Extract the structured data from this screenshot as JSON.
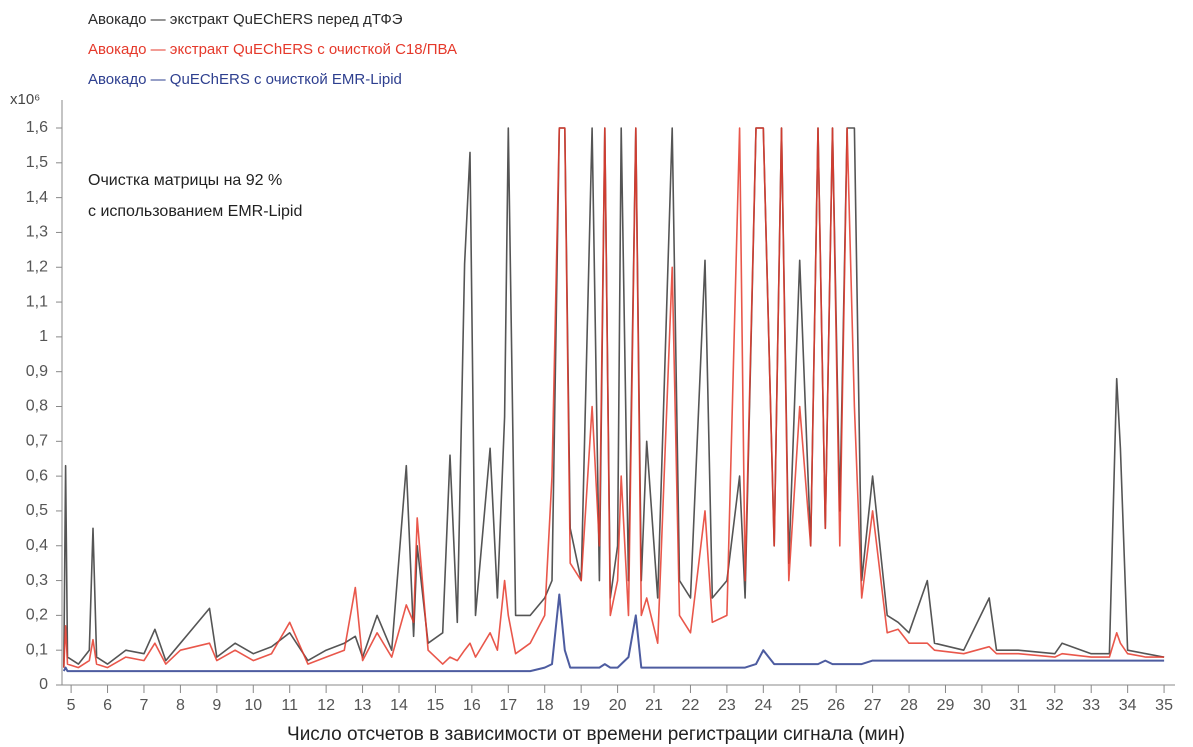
{
  "chart_data": {
    "type": "line",
    "y_unit": "x10⁶",
    "x_label": "Число отсчетов в зависимости от времени регистрации сигнала (мин)",
    "annotation": [
      "Очистка матрицы на 92 %",
      "с использованием EMR-Lipid"
    ],
    "xlim": [
      4.75,
      35.3
    ],
    "ylim": [
      0,
      1.6
    ],
    "xticks": [
      5,
      6,
      7,
      8,
      9,
      10,
      11,
      12,
      13,
      14,
      15,
      16,
      17,
      18,
      19,
      20,
      21,
      22,
      23,
      24,
      25,
      26,
      27,
      28,
      29,
      30,
      31,
      32,
      33,
      34,
      35
    ],
    "yticks": [
      0,
      {
        "value": 0.1,
        "label": "0,1"
      },
      {
        "value": 0.2,
        "label": "0,2"
      },
      {
        "value": 0.3,
        "label": "0,3"
      },
      {
        "value": 0.4,
        "label": "0,4"
      },
      {
        "value": 0.5,
        "label": "0,5"
      },
      {
        "value": 0.6,
        "label": "0,6"
      },
      {
        "value": 0.7,
        "label": "0,7"
      },
      {
        "value": 0.8,
        "label": "0,8"
      },
      {
        "value": 0.9,
        "label": "0,9"
      },
      1,
      {
        "value": 1.1,
        "label": "1,1"
      },
      {
        "value": 1.2,
        "label": "1,2"
      },
      {
        "value": 1.3,
        "label": "1,3"
      },
      {
        "value": 1.4,
        "label": "1,4"
      },
      {
        "value": 1.5,
        "label": "1,5"
      },
      {
        "value": 1.6,
        "label": "1,6"
      }
    ],
    "x": [
      4.8,
      4.85,
      4.9,
      5.2,
      5.5,
      5.6,
      5.7,
      6.0,
      6.5,
      7.0,
      7.3,
      7.6,
      8.0,
      8.8,
      9.0,
      9.5,
      10.0,
      10.5,
      11.0,
      11.5,
      12.0,
      12.5,
      12.8,
      13.0,
      13.4,
      13.8,
      14.2,
      14.4,
      14.5,
      14.8,
      15.2,
      15.4,
      15.6,
      15.8,
      15.95,
      16.1,
      16.5,
      16.7,
      16.9,
      17.0,
      17.2,
      17.6,
      18.0,
      18.2,
      18.4,
      18.55,
      18.7,
      19.0,
      19.3,
      19.5,
      19.65,
      19.8,
      20.0,
      20.1,
      20.3,
      20.5,
      20.65,
      20.8,
      21.1,
      21.5,
      21.7,
      22.0,
      22.4,
      22.6,
      23.0,
      23.35,
      23.5,
      23.8,
      24.0,
      24.3,
      24.5,
      24.7,
      25.0,
      25.3,
      25.5,
      25.7,
      25.9,
      26.1,
      26.3,
      26.5,
      26.7,
      27.0,
      27.4,
      27.7,
      28.0,
      28.5,
      28.7,
      29.5,
      30.2,
      30.4,
      31.0,
      32.0,
      32.2,
      33.0,
      33.5,
      33.7,
      33.8,
      34.0,
      34.5,
      35.0
    ],
    "series": [
      {
        "name": "Авокадо — экстракт QuEChERS перед дТФЭ",
        "color": "#2b2b2b",
        "values": [
          0.05,
          0.63,
          0.08,
          0.06,
          0.1,
          0.45,
          0.08,
          0.06,
          0.1,
          0.09,
          0.16,
          0.07,
          0.12,
          0.22,
          0.08,
          0.12,
          0.09,
          0.11,
          0.15,
          0.07,
          0.1,
          0.12,
          0.14,
          0.08,
          0.2,
          0.1,
          0.63,
          0.14,
          0.4,
          0.12,
          0.15,
          0.66,
          0.18,
          1.21,
          1.53,
          0.2,
          0.68,
          0.25,
          0.77,
          1.6,
          0.2,
          0.2,
          0.25,
          0.3,
          1.6,
          1.6,
          0.45,
          0.3,
          1.6,
          0.3,
          1.6,
          0.25,
          0.4,
          1.6,
          0.3,
          1.6,
          0.3,
          0.7,
          0.25,
          1.6,
          0.3,
          0.25,
          1.22,
          0.25,
          0.3,
          0.6,
          0.25,
          1.6,
          1.6,
          0.4,
          1.6,
          0.35,
          1.22,
          0.4,
          1.6,
          0.45,
          1.6,
          0.5,
          1.6,
          1.6,
          0.3,
          0.6,
          0.2,
          0.18,
          0.15,
          0.3,
          0.12,
          0.1,
          0.25,
          0.1,
          0.1,
          0.09,
          0.12,
          0.09,
          0.09,
          0.88,
          0.68,
          0.1,
          0.09,
          0.08
        ]
      },
      {
        "name": "Авокадо — экстракт QuEChERS с очисткой C18/ПВА",
        "color": "#e5392b",
        "values": [
          0.05,
          0.17,
          0.06,
          0.05,
          0.07,
          0.13,
          0.06,
          0.05,
          0.08,
          0.07,
          0.12,
          0.06,
          0.1,
          0.12,
          0.07,
          0.1,
          0.07,
          0.09,
          0.18,
          0.06,
          0.08,
          0.1,
          0.28,
          0.07,
          0.15,
          0.08,
          0.23,
          0.18,
          0.48,
          0.1,
          0.06,
          0.08,
          0.07,
          0.1,
          0.12,
          0.08,
          0.15,
          0.1,
          0.3,
          0.2,
          0.09,
          0.12,
          0.2,
          0.6,
          1.6,
          1.6,
          0.35,
          0.3,
          0.8,
          0.4,
          1.6,
          0.2,
          0.3,
          0.6,
          0.2,
          1.6,
          0.2,
          0.25,
          0.12,
          1.2,
          0.2,
          0.15,
          0.5,
          0.18,
          0.2,
          1.6,
          0.3,
          1.6,
          1.6,
          0.4,
          1.6,
          0.3,
          0.8,
          0.4,
          1.6,
          0.45,
          1.6,
          0.4,
          1.6,
          0.8,
          0.25,
          0.5,
          0.15,
          0.16,
          0.12,
          0.12,
          0.1,
          0.09,
          0.11,
          0.09,
          0.09,
          0.08,
          0.09,
          0.08,
          0.08,
          0.15,
          0.12,
          0.09,
          0.08,
          0.08
        ]
      },
      {
        "name": "Авокадо — QuEChERS с очисткой EMR-Lipid",
        "color": "#2e3f8f",
        "values": [
          0.04,
          0.05,
          0.04,
          0.04,
          0.04,
          0.04,
          0.04,
          0.04,
          0.04,
          0.04,
          0.04,
          0.04,
          0.04,
          0.04,
          0.04,
          0.04,
          0.04,
          0.04,
          0.04,
          0.04,
          0.04,
          0.04,
          0.04,
          0.04,
          0.04,
          0.04,
          0.04,
          0.04,
          0.04,
          0.04,
          0.04,
          0.04,
          0.04,
          0.04,
          0.04,
          0.04,
          0.04,
          0.04,
          0.04,
          0.04,
          0.04,
          0.04,
          0.05,
          0.06,
          0.26,
          0.1,
          0.05,
          0.05,
          0.05,
          0.05,
          0.06,
          0.05,
          0.05,
          0.06,
          0.08,
          0.2,
          0.05,
          0.05,
          0.05,
          0.05,
          0.05,
          0.05,
          0.05,
          0.05,
          0.05,
          0.05,
          0.05,
          0.06,
          0.1,
          0.06,
          0.06,
          0.06,
          0.06,
          0.06,
          0.06,
          0.07,
          0.06,
          0.06,
          0.06,
          0.06,
          0.06,
          0.07,
          0.07,
          0.07,
          0.07,
          0.07,
          0.07,
          0.07,
          0.07,
          0.07,
          0.07,
          0.07,
          0.07,
          0.07,
          0.07,
          0.07,
          0.07,
          0.07,
          0.07,
          0.07
        ]
      }
    ]
  }
}
